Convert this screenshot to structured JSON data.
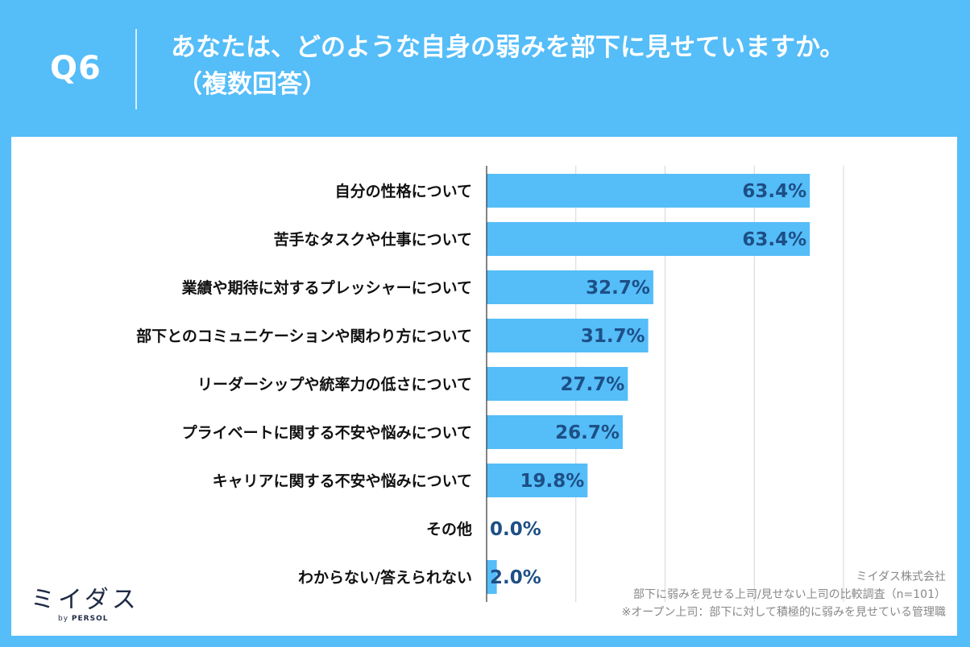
{
  "header": {
    "qnum": "Q6",
    "title_line1": "あなたは、どのような自身の弱みを部下に見せていますか。",
    "title_line2": "（複数回答）"
  },
  "chart_data": {
    "type": "bar",
    "orientation": "horizontal",
    "categories": [
      "自分の性格について",
      "苦手なタスクや仕事について",
      "業績や期待に対するプレッシャーについて",
      "部下とのコミュニケーションや関わり方について",
      "リーダーシップや統率力の低さについて",
      "プライベートに関する不安や悩みについて",
      "キャリアに関する不安や悩みについて",
      "その他",
      "わからない/答えられない"
    ],
    "values": [
      63.4,
      63.4,
      32.7,
      31.7,
      27.7,
      26.7,
      19.8,
      0.0,
      2.0
    ],
    "value_labels": [
      "63.4%",
      "63.4%",
      "32.7%",
      "31.7%",
      "27.7%",
      "26.7%",
      "19.8%",
      "0.0%",
      "2.0%"
    ],
    "xlim": [
      0,
      70
    ],
    "gridlines_at": [
      17.5,
      35,
      52.5,
      70
    ],
    "bar_color": "#55bdf8",
    "value_label_color": "#1d4f86"
  },
  "logo": {
    "name": "ミイダス",
    "sub_by": "by",
    "sub_brand": "PERSOL"
  },
  "notes": {
    "company": "ミイダス株式会社",
    "survey": "部下に弱みを見せる上司/見せない上司の比較調査（n=101）",
    "footnote": "※オープン上司：部下に対して積極的に弱みを見せている管理職"
  },
  "colors": {
    "background": "#55bdf8",
    "card": "#ffffff",
    "text_dark": "#111111"
  }
}
